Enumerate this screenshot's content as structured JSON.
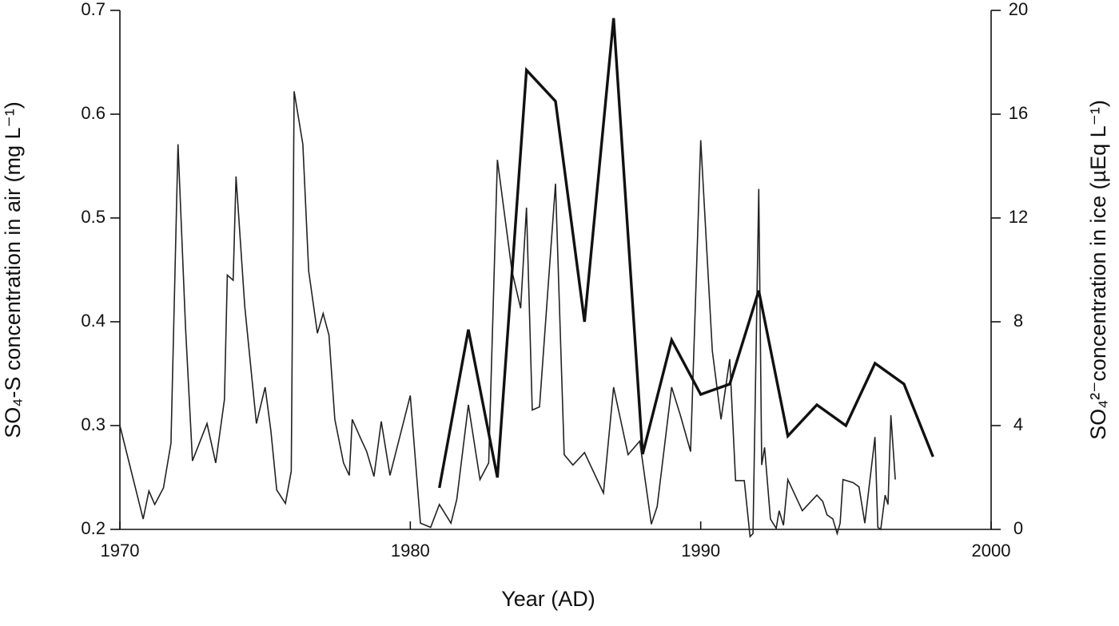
{
  "chart_data": {
    "type": "line",
    "xlabel": "Year (AD)",
    "ylabel": "SO₄-S concentration in air (mg L⁻¹)",
    "y2label": "SO₄²⁻concentration in ice (µEq L⁻¹)",
    "xlim": [
      1970,
      2000
    ],
    "xticks": [
      1970,
      1980,
      1990,
      2000
    ],
    "ylim": [
      0.2,
      0.7
    ],
    "yticks": [
      0.2,
      0.3,
      0.4,
      0.5,
      0.6,
      0.7
    ],
    "y2lim": [
      0,
      20
    ],
    "y2ticks": [
      0,
      4,
      8,
      12,
      16,
      20
    ],
    "series": [
      {
        "color": "#222222",
        "width": 1.6,
        "x": [
          1970.0,
          1970.8,
          1971.0,
          1971.2,
          1971.5,
          1971.76,
          1972.0,
          1972.26,
          1972.5,
          1973.0,
          1973.3,
          1973.6,
          1973.7,
          1973.9,
          1974.0,
          1974.3,
          1974.7,
          1975.0,
          1975.2,
          1975.4,
          1975.7,
          1975.9,
          1976.0,
          1976.3,
          1976.5,
          1976.8,
          1977.0,
          1977.2,
          1977.4,
          1977.7,
          1977.9,
          1978.0,
          1978.3,
          1978.5,
          1978.75,
          1979.0,
          1979.3,
          1980.0,
          1980.35,
          1980.7,
          1981.0,
          1981.4,
          1981.6,
          1982.0,
          1982.4,
          1982.7,
          1983.0,
          1983.5,
          1983.8,
          1984.0,
          1984.2,
          1984.45,
          1985.0,
          1985.3,
          1985.6,
          1986.0,
          1986.65,
          1987.0,
          1987.5,
          1987.9,
          1988.3,
          1988.5,
          1989.0,
          1989.3,
          1989.65,
          1990.0,
          1990.4,
          1990.7,
          1991.0,
          1991.2,
          1991.5,
          1991.7,
          1991.8,
          1992.0,
          1992.1,
          1992.2,
          1992.4,
          1992.6,
          1992.7,
          1992.85,
          1993.0,
          1993.5,
          1994.0,
          1994.2,
          1994.35,
          1994.55,
          1994.7,
          1994.8,
          1994.9,
          1995.25,
          1995.45,
          1995.65,
          1996.0,
          1996.1,
          1996.2,
          1996.35,
          1996.45,
          1996.55,
          1996.7
        ],
        "values": [
          0.3,
          0.21,
          0.237,
          0.224,
          0.24,
          0.283,
          0.571,
          0.395,
          0.266,
          0.302,
          0.264,
          0.325,
          0.445,
          0.44,
          0.54,
          0.415,
          0.302,
          0.337,
          0.295,
          0.238,
          0.225,
          0.256,
          0.622,
          0.571,
          0.449,
          0.389,
          0.408,
          0.387,
          0.306,
          0.264,
          0.252,
          0.306,
          0.287,
          0.275,
          0.251,
          0.304,
          0.252,
          0.329,
          0.206,
          0.202,
          0.224,
          0.206,
          0.229,
          0.32,
          0.248,
          0.264,
          0.556,
          0.449,
          0.413,
          0.51,
          0.315,
          0.318,
          0.533,
          0.272,
          0.262,
          0.274,
          0.235,
          0.337,
          0.272,
          0.285,
          0.205,
          0.222,
          0.337,
          0.31,
          0.275,
          0.575,
          0.372,
          0.306,
          0.364,
          0.247,
          0.247,
          0.193,
          0.196,
          0.528,
          0.262,
          0.279,
          0.21,
          0.201,
          0.218,
          0.204,
          0.248,
          0.218,
          0.233,
          0.227,
          0.214,
          0.21,
          0.196,
          0.206,
          0.248,
          0.245,
          0.241,
          0.206,
          0.289,
          0.202,
          0.2,
          0.233,
          0.224,
          0.31,
          0.248
        ]
      },
      {
        "color": "#111111",
        "width": 3.4,
        "axis": "y2",
        "x": [
          1981,
          1982,
          1983,
          1984,
          1985,
          1986,
          1987,
          1988,
          1989,
          1990,
          1991,
          1992,
          1993,
          1994,
          1995,
          1996,
          1997,
          1998
        ],
        "values": [
          1.6,
          7.7,
          2.0,
          17.7,
          16.5,
          8.0,
          19.7,
          2.9,
          7.3,
          5.2,
          5.6,
          9.2,
          3.6,
          4.8,
          4.0,
          6.4,
          5.6,
          2.8
        ]
      }
    ]
  }
}
